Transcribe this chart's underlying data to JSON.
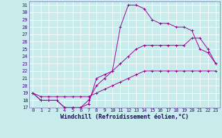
{
  "xlabel": "Windchill (Refroidissement éolien,°C)",
  "bg_color": "#c8ecec",
  "grid_color": "#ffffff",
  "line_color": "#990099",
  "xlim": [
    -0.5,
    23.5
  ],
  "ylim": [
    17,
    31.5
  ],
  "xticks": [
    0,
    1,
    2,
    3,
    4,
    5,
    6,
    7,
    8,
    9,
    10,
    11,
    12,
    13,
    14,
    15,
    16,
    17,
    18,
    19,
    20,
    21,
    22,
    23
  ],
  "yticks": [
    17,
    18,
    19,
    20,
    21,
    22,
    23,
    24,
    25,
    26,
    27,
    28,
    29,
    30,
    31
  ],
  "line1_x": [
    0,
    1,
    2,
    3,
    4,
    5,
    6,
    7,
    8,
    9,
    10,
    11,
    12,
    13,
    14,
    15,
    16,
    17,
    18,
    19,
    20,
    21,
    22,
    23
  ],
  "line1_y": [
    19,
    18,
    18,
    18,
    17,
    17,
    17,
    17.5,
    21,
    21.5,
    22,
    28,
    31,
    31,
    30.5,
    29,
    28.5,
    28.5,
    28,
    28,
    27.5,
    25,
    24.5,
    23
  ],
  "line2_x": [
    0,
    1,
    2,
    3,
    4,
    5,
    6,
    7,
    8,
    9,
    10,
    11,
    12,
    13,
    14,
    15,
    16,
    17,
    18,
    19,
    20,
    21,
    22,
    23
  ],
  "line2_y": [
    19,
    18,
    18,
    18,
    17,
    17,
    17,
    18,
    20,
    21,
    22,
    23,
    24,
    25,
    25.5,
    25.5,
    25.5,
    25.5,
    25.5,
    25.5,
    26.5,
    26.5,
    25,
    23
  ],
  "line3_x": [
    0,
    1,
    2,
    3,
    4,
    5,
    6,
    7,
    8,
    9,
    10,
    11,
    12,
    13,
    14,
    15,
    16,
    17,
    18,
    19,
    20,
    21,
    22,
    23
  ],
  "line3_y": [
    19,
    18.5,
    18.5,
    18.5,
    18.5,
    18.5,
    18.5,
    18.5,
    19,
    19.5,
    20,
    20.5,
    21,
    21.5,
    22,
    22,
    22,
    22,
    22,
    22,
    22,
    22,
    22,
    22
  ],
  "xlabel_fontsize": 6,
  "tick_fontsize": 5,
  "figsize": [
    3.2,
    2.0
  ],
  "dpi": 100
}
